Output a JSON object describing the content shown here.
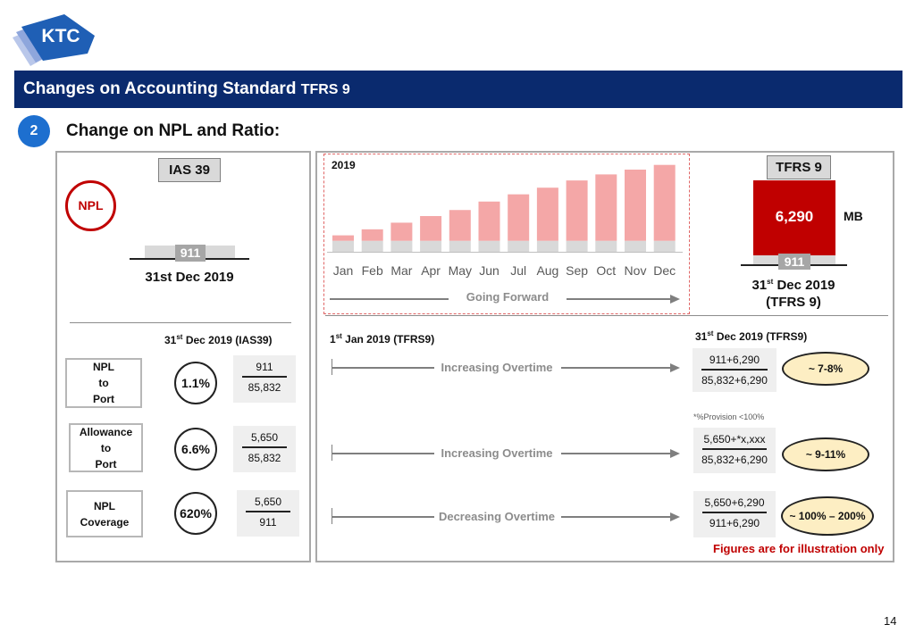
{
  "logo": {
    "text": "KTC"
  },
  "header": {
    "title": "Changes on Accounting Standard",
    "title_suffix": "TFRS 9"
  },
  "section": {
    "number": "2",
    "title": "Change on NPL and Ratio:"
  },
  "left": {
    "standard_label": "IAS 39",
    "npl_badge": "NPL",
    "npl_value": "911",
    "date": "31st Dec 2019",
    "table_heading_pre": "31",
    "table_heading_sup": "st",
    "table_heading_post": " Dec 2019 (IAS39)",
    "rows": [
      {
        "label": "NPL\nto\nPort",
        "ratio": "1.1%",
        "numerator": "911",
        "denominator": "85,832"
      },
      {
        "label": "Allowance\nto\nPort",
        "ratio": "6.6%",
        "numerator": "5,650",
        "denominator": "85,832"
      },
      {
        "label": "NPL\nCoverage",
        "ratio": "620%",
        "numerator": "5,650",
        "denominator": "911"
      }
    ]
  },
  "chart_data": {
    "type": "bar",
    "title": "2019",
    "categories": [
      "Jan",
      "Feb",
      "Mar",
      "Apr",
      "May",
      "Jun",
      "Jul",
      "Aug",
      "Sep",
      "Oct",
      "Nov",
      "Dec"
    ],
    "series": [
      {
        "values": [
          911,
          911,
          911,
          911,
          911,
          911,
          911,
          911,
          911,
          911,
          911,
          911
        ]
      },
      {
        "values": [
          450,
          950,
          1500,
          2050,
          2550,
          3250,
          3850,
          4400,
          5000,
          5500,
          5900,
          6290
        ]
      }
    ],
    "ylim": [
      0,
      7400
    ],
    "grid": false,
    "legend": "none",
    "colors": [
      "#d9d9d9",
      "#f4a7a7"
    ]
  },
  "forward_label": "Going Forward",
  "right": {
    "standard_label": "TFRS 9",
    "new_value": "6,290",
    "unit": "MB",
    "base_value": "911",
    "date_pre": "31",
    "date_sup": "st",
    "date_post": " Dec 2019",
    "date_line2": "(TFRS 9)",
    "start_pre": "1",
    "start_sup": "st",
    "start_post": " Jan 2019 (TFRS9)",
    "end_pre": "31",
    "end_sup": "st",
    "end_post": " Dec 2019 (TFRS9)",
    "provision_note": "*%Provision <100%",
    "rows": [
      {
        "trend": "Increasing Overtime",
        "numerator": "911+6,290",
        "denominator": "85,832+6,290",
        "result": "~ 7-8%"
      },
      {
        "trend": "Increasing Overtime",
        "numerator": "5,650+*x,xxx",
        "denominator": "85,832+6,290",
        "result": "~ 9-11%"
      },
      {
        "trend": "Decreasing Overtime",
        "numerator": "5,650+6,290",
        "denominator": "911+6,290",
        "result": "~ 100% – 200%"
      }
    ],
    "footnote": "Figures are for illustration only"
  },
  "page_number": "14",
  "colors": {
    "header": "#0a2a6e",
    "npl_red": "#c00000",
    "bar_pink": "#f4a7a7",
    "bar_gray": "#d9d9d9",
    "oval_fill": "#fdeec3",
    "number_blue": "#1d6fcf"
  }
}
